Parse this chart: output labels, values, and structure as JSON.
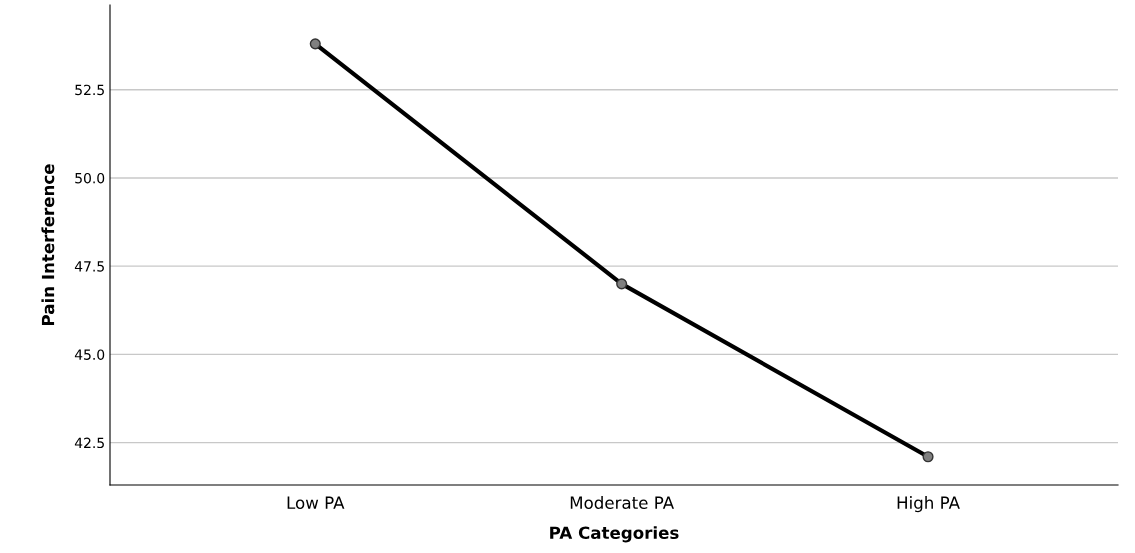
{
  "chart_data": {
    "type": "line",
    "xlabel": "PA Categories",
    "ylabel": "Pain Interference",
    "categories": [
      "Low PA",
      "Moderate PA",
      "High PA"
    ],
    "series": [
      {
        "color": "#000000",
        "values": [
          53.8,
          47.0,
          42.1
        ]
      }
    ],
    "ylim": [
      41.3,
      54.9
    ],
    "yticks": [
      {
        "value": 42.5,
        "label": "42.5"
      },
      {
        "value": 45.0,
        "label": "45.0"
      },
      {
        "value": 47.5,
        "label": "47.5"
      },
      {
        "value": 50.0,
        "label": "50.0"
      },
      {
        "value": 52.5,
        "label": "52.5"
      }
    ],
    "grid": "y",
    "marker": "circle",
    "line_style": "solid"
  }
}
